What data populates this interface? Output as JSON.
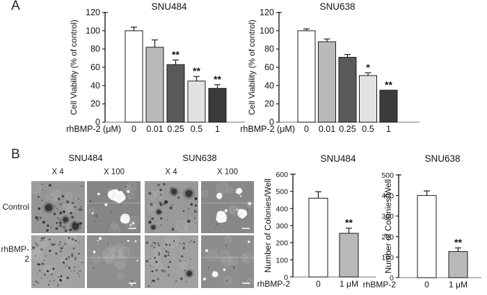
{
  "panels": {
    "a_label": "A",
    "b_label": "B"
  },
  "panel_b": {
    "group_titles": [
      "SNU484",
      "SUN638"
    ],
    "mag_labels": [
      "X 4",
      "X 100",
      "X 4",
      "X 100"
    ],
    "row_labels": [
      "Control",
      "rhBMP-2"
    ],
    "micrographs": [
      {
        "name": "snu484-x4-control-micrograph",
        "bg": "#969696",
        "dots": 55,
        "dot_max": 2.4,
        "blobs": 3,
        "colonies": 0,
        "specks": 0,
        "rings": 6,
        "seam": false,
        "scalebar": false
      },
      {
        "name": "snu484-x100-control-micrograph",
        "bg": "#858585",
        "dots": 6,
        "dot_max": 1.2,
        "blobs": 0,
        "colonies": 3,
        "specks": 8,
        "rings": 9,
        "seam": true,
        "scalebar": true
      },
      {
        "name": "sun638-x4-control-micrograph",
        "bg": "#999999",
        "dots": 38,
        "dot_max": 2.4,
        "blobs": 4,
        "colonies": 0,
        "specks": 0,
        "rings": 5,
        "seam": false,
        "scalebar": false
      },
      {
        "name": "sun638-x100-control-micrograph",
        "bg": "#888888",
        "dots": 4,
        "dot_max": 1.2,
        "blobs": 0,
        "colonies": 5,
        "specks": 5,
        "rings": 7,
        "seam": true,
        "scalebar": true
      },
      {
        "name": "snu484-x4-rhbmp2-micrograph",
        "bg": "#a2a2a2",
        "dots": 72,
        "dot_max": 1.8,
        "blobs": 0,
        "colonies": 0,
        "specks": 0,
        "rings": 7,
        "seam": false,
        "scalebar": false
      },
      {
        "name": "snu484-x100-rhbmp2-micrograph",
        "bg": "#8e8e8e",
        "dots": 5,
        "dot_max": 1.2,
        "blobs": 0,
        "colonies": 0,
        "specks": 7,
        "rings": 12,
        "seam": true,
        "scalebar": true
      },
      {
        "name": "sun638-x4-rhbmp2-micrograph",
        "bg": "#a0a0a0",
        "dots": 55,
        "dot_max": 1.8,
        "blobs": 1,
        "colonies": 0,
        "specks": 0,
        "rings": 5,
        "seam": false,
        "scalebar": false
      },
      {
        "name": "sun638-x100-rhbmp2-micrograph",
        "bg": "#8d8d8d",
        "dots": 4,
        "dot_max": 1.2,
        "blobs": 0,
        "colonies": 1,
        "specks": 4,
        "rings": 9,
        "seam": true,
        "scalebar": true
      }
    ]
  },
  "chart_data": [
    {
      "id": "viability-snu484",
      "type": "bar",
      "title": "SNU484",
      "ylabel": "Cell Viability (% of control)",
      "xlabel": "rhBMP-2 (μM)",
      "categories": [
        "0",
        "0.01",
        "0.25",
        "0.5",
        "1"
      ],
      "values": [
        100,
        82,
        63,
        45,
        37
      ],
      "errors": [
        4,
        8,
        5,
        5,
        4
      ],
      "sig": [
        "",
        "",
        "**",
        "**",
        "**"
      ],
      "bar_colors": [
        "#ffffff",
        "#b9b9b9",
        "#595959",
        "#e2e2e2",
        "#3b3b3b"
      ],
      "ylim": [
        0,
        120
      ],
      "ytick_step": 20,
      "grid": false,
      "legend": "none"
    },
    {
      "id": "viability-snu638",
      "type": "bar",
      "title": "SNU638",
      "ylabel": "Cell Viability (% of control)",
      "xlabel": "rhBMP-2 (μM)",
      "categories": [
        "0",
        "0.01",
        "0.25",
        "0.5",
        "1"
      ],
      "values": [
        100,
        88,
        71,
        51,
        35
      ],
      "errors": [
        2,
        3,
        3,
        3,
        0
      ],
      "sig": [
        "",
        "",
        "",
        "*",
        "**"
      ],
      "bar_colors": [
        "#ffffff",
        "#b9b9b9",
        "#595959",
        "#e2e2e2",
        "#3b3b3b"
      ],
      "ylim": [
        0,
        120
      ],
      "ytick_step": 20,
      "grid": false,
      "legend": "none"
    },
    {
      "id": "colonies-snu484",
      "type": "bar",
      "title": "SNU484",
      "ylabel": "Number of Colonies/Well",
      "xlabel": "rhBMP-2",
      "categories": [
        "0",
        "1 μM"
      ],
      "values": [
        460,
        255
      ],
      "errors": [
        38,
        30
      ],
      "sig": [
        "",
        "**"
      ],
      "bar_colors": [
        "#ffffff",
        "#b9b9b9"
      ],
      "ylim": [
        0,
        600
      ],
      "ytick_step": 100,
      "grid": false,
      "legend": "none"
    },
    {
      "id": "colonies-snu638",
      "type": "bar",
      "title": "SNU638",
      "ylabel": "Number of Colonies/Well",
      "xlabel": "rhBMP-2",
      "categories": [
        "0",
        "1 μM"
      ],
      "values": [
        400,
        127
      ],
      "errors": [
        22,
        18
      ],
      "sig": [
        "",
        "**"
      ],
      "bar_colors": [
        "#ffffff",
        "#b9b9b9"
      ],
      "ylim": [
        0,
        500
      ],
      "ytick_step": 100,
      "grid": false,
      "legend": "none"
    }
  ],
  "colors": {
    "axis": "#1c1c1c",
    "baseline": "#8f8f8f",
    "error_bar": "#1a1a1a",
    "bar_edge": "#1a1a1a"
  }
}
